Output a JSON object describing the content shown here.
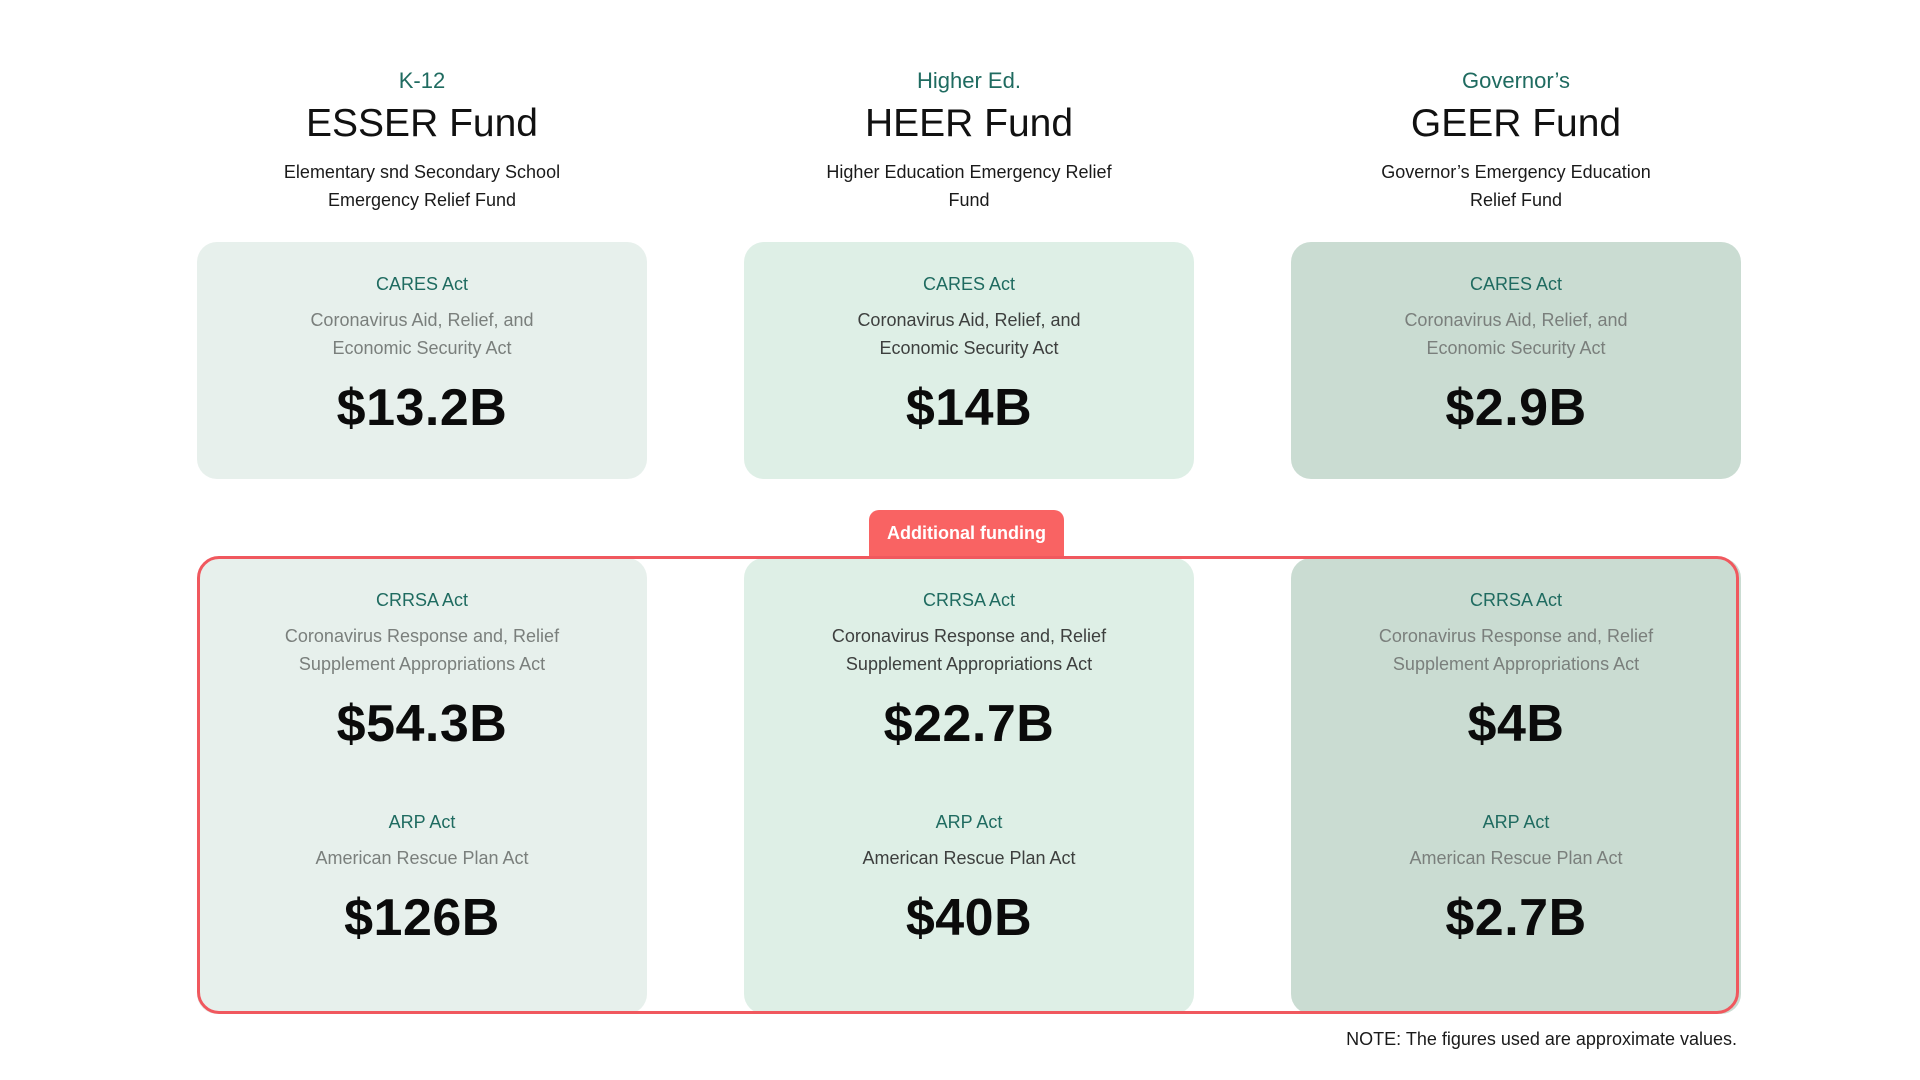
{
  "columns": [
    {
      "kicker": "K-12",
      "title": "ESSER Fund",
      "description": "Elementary snd Secondary School Emergency Relief Fund",
      "cares": {
        "act": "CARES Act",
        "full": "Coronavirus Aid, Relief, and Economic Security Act",
        "amount": "$13.2B"
      },
      "crrsa": {
        "act": "CRRSA Act",
        "full": "Coronavirus Response and, Relief Supplement Appropriations Act",
        "amount": "$54.3B"
      },
      "arp": {
        "act": "ARP Act",
        "full": "American Rescue Plan Act",
        "amount": "$126B"
      }
    },
    {
      "kicker": "Higher Ed.",
      "title": "HEER Fund",
      "description": "Higher Education Emergency Relief Fund",
      "cares": {
        "act": "CARES Act",
        "full": "Coronavirus Aid, Relief, and Economic Security Act",
        "amount": "$14B"
      },
      "crrsa": {
        "act": "CRRSA Act",
        "full": "Coronavirus Response and, Relief Supplement Appropriations Act",
        "amount": "$22.7B"
      },
      "arp": {
        "act": "ARP Act",
        "full": "American Rescue Plan Act",
        "amount": "$40B"
      }
    },
    {
      "kicker": "Governor’s",
      "title": "GEER Fund",
      "description": "Governor’s Emergency Education Relief Fund",
      "cares": {
        "act": "CARES Act",
        "full": "Coronavirus Aid, Relief, and Economic Security Act",
        "amount": "$2.9B"
      },
      "crrsa": {
        "act": "CRRSA Act",
        "full": "Coronavirus Response and, Relief Supplement Appropriations Act",
        "amount": "$4B"
      },
      "arp": {
        "act": "ARP Act",
        "full": "American Rescue Plan Act",
        "amount": "$2.7B"
      }
    }
  ],
  "additional_label": "Additional funding",
  "note": "NOTE: The figures used are approximate values.",
  "colors": {
    "accent": "#f96363",
    "kicker": "#1f6b60",
    "card_1": "#e7f0ec",
    "card_2": "#deefe6",
    "card_3": "#cadcd2"
  }
}
